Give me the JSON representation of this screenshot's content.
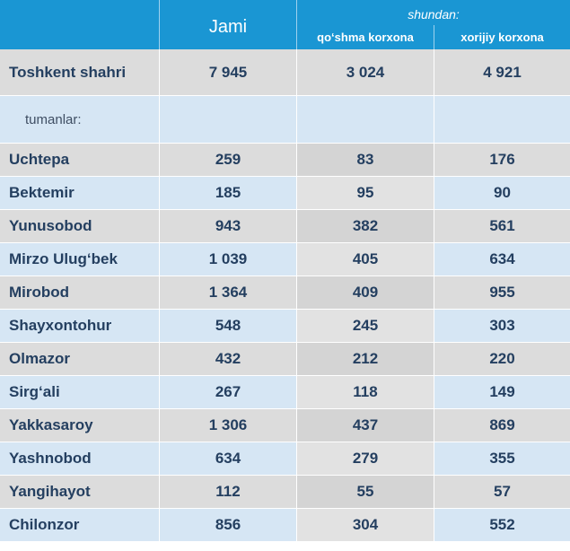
{
  "header": {
    "jami": "Jami",
    "shundan": "shundan:",
    "qoshma": "qo‘shma korxona",
    "xorijiy": "xorijiy korxona"
  },
  "total": {
    "name": "Toshkent shahri",
    "jami": "7 945",
    "qoshma": "3 024",
    "xorijiy": "4 921"
  },
  "subheader": "tumanlar:",
  "rows": [
    {
      "name": "Uchtepa",
      "jami": "259",
      "qoshma": "83",
      "xorijiy": "176"
    },
    {
      "name": "Bektemir",
      "jami": "185",
      "qoshma": "95",
      "xorijiy": "90"
    },
    {
      "name": "Yunusobod",
      "jami": "943",
      "qoshma": "382",
      "xorijiy": "561"
    },
    {
      "name": "Mirzo Ulug‘bek",
      "jami": "1 039",
      "qoshma": "405",
      "xorijiy": "634"
    },
    {
      "name": "Mirobod",
      "jami": "1 364",
      "qoshma": "409",
      "xorijiy": "955"
    },
    {
      "name": "Shayxontohur",
      "jami": "548",
      "qoshma": "245",
      "xorijiy": "303"
    },
    {
      "name": "Olmazor",
      "jami": "432",
      "qoshma": "212",
      "xorijiy": "220"
    },
    {
      "name": "Sirg‘ali",
      "jami": "267",
      "qoshma": "118",
      "xorijiy": "149"
    },
    {
      "name": "Yakkasaroy",
      "jami": "1 306",
      "qoshma": "437",
      "xorijiy": "869"
    },
    {
      "name": "Yashnobod",
      "jami": "634",
      "qoshma": "279",
      "xorijiy": "355"
    },
    {
      "name": "Yangihayot",
      "jami": "112",
      "qoshma": "55",
      "xorijiy": "57"
    },
    {
      "name": "Chilonzor",
      "jami": "856",
      "qoshma": "304",
      "xorijiy": "552"
    }
  ]
}
